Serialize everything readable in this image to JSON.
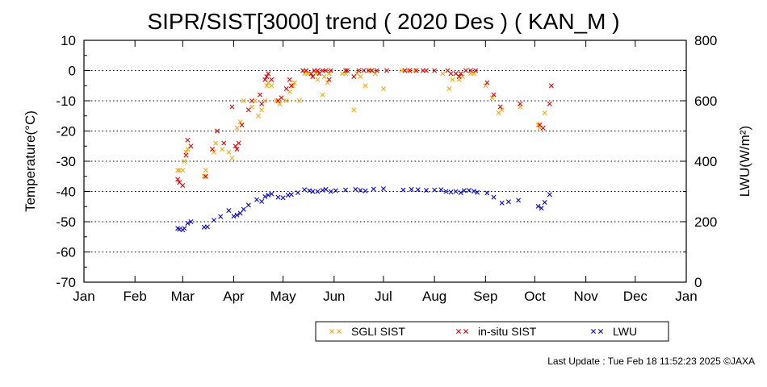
{
  "chart_data": {
    "type": "scatter",
    "title": "SIPR/SIST[3000] trend ( 2020 Des ) ( KAN_M )",
    "xlabel": "",
    "ylabel": "Temperature(°C)",
    "ylabel_right": "LWU(W/m²)",
    "ylim": [
      -70,
      10
    ],
    "ylim_right": [
      0,
      800
    ],
    "grid": "horizontal dotted",
    "legend_position": "bottom-center",
    "x_ticks": [
      "Jan",
      "Feb",
      "Mar",
      "Apr",
      "May",
      "Jun",
      "Jul",
      "Aug",
      "Sep",
      "Oct",
      "Nov",
      "Dec",
      "Jan"
    ],
    "y_ticks": [
      10,
      0,
      -10,
      -20,
      -30,
      -40,
      -50,
      -60,
      -70
    ],
    "y_ticks_right": [
      800,
      600,
      400,
      200,
      0
    ],
    "series": [
      {
        "name": "SGLI SIST",
        "axis": "left",
        "color": "#ffa500",
        "marker": "x",
        "points": [
          [
            "2020-02-27",
            -33
          ],
          [
            "2020-02-28",
            -33
          ],
          [
            "2020-03-01",
            -33
          ],
          [
            "2020-03-02",
            -30
          ],
          [
            "2020-03-03",
            -27
          ],
          [
            "2020-03-04",
            -26
          ],
          [
            "2020-03-14",
            -35
          ],
          [
            "2020-03-15",
            -33
          ],
          [
            "2020-03-20",
            -27
          ],
          [
            "2020-03-21",
            -24
          ],
          [
            "2020-03-25",
            -26
          ],
          [
            "2020-03-29",
            -27
          ],
          [
            "2020-03-31",
            -29
          ],
          [
            "2020-04-03",
            -19
          ],
          [
            "2020-04-05",
            -17
          ],
          [
            "2020-04-07",
            -10
          ],
          [
            "2020-04-12",
            -12
          ],
          [
            "2020-04-14",
            -10
          ],
          [
            "2020-04-16",
            -15
          ],
          [
            "2020-04-18",
            -13
          ],
          [
            "2020-04-20",
            -10
          ],
          [
            "2020-04-21",
            -5
          ],
          [
            "2020-04-22",
            -4
          ],
          [
            "2020-04-24",
            -5
          ],
          [
            "2020-04-27",
            -10
          ],
          [
            "2020-04-29",
            -11
          ],
          [
            "2020-05-03",
            -10
          ],
          [
            "2020-05-05",
            -7
          ],
          [
            "2020-05-07",
            -5
          ],
          [
            "2020-05-08",
            -4
          ],
          [
            "2020-05-11",
            -10
          ],
          [
            "2020-05-14",
            -1
          ],
          [
            "2020-05-16",
            -1
          ],
          [
            "2020-05-19",
            -2
          ],
          [
            "2020-05-21",
            -1
          ],
          [
            "2020-05-22",
            -3
          ],
          [
            "2020-05-25",
            -8
          ],
          [
            "2020-05-26",
            -2
          ],
          [
            "2020-05-28",
            -4
          ],
          [
            "2020-05-29",
            -1
          ],
          [
            "2020-06-06",
            -1
          ],
          [
            "2020-06-08",
            -1
          ],
          [
            "2020-06-13",
            -13
          ],
          [
            "2020-06-15",
            -1
          ],
          [
            "2020-06-17",
            -2
          ],
          [
            "2020-06-20",
            -5
          ],
          [
            "2020-06-23",
            0
          ],
          [
            "2020-06-26",
            -1
          ],
          [
            "2020-07-01",
            -6
          ],
          [
            "2020-07-12",
            0
          ],
          [
            "2020-07-16",
            0
          ],
          [
            "2020-07-20",
            0
          ],
          [
            "2020-08-06",
            -1
          ],
          [
            "2020-08-10",
            -6
          ],
          [
            "2020-08-12",
            -3
          ],
          [
            "2020-08-14",
            -1
          ],
          [
            "2020-08-16",
            -3
          ],
          [
            "2020-08-18",
            -2
          ],
          [
            "2020-08-23",
            -1
          ],
          [
            "2020-08-25",
            -1
          ],
          [
            "2020-09-01",
            -5
          ],
          [
            "2020-09-05",
            -9
          ],
          [
            "2020-09-09",
            -14
          ],
          [
            "2020-09-11",
            -13
          ],
          [
            "2020-09-22",
            -12
          ],
          [
            "2020-10-03",
            -18
          ],
          [
            "2020-10-04",
            -19
          ],
          [
            "2020-10-07",
            -14
          ]
        ]
      },
      {
        "name": "in-situ SIST",
        "axis": "left",
        "color": "#e00000",
        "marker": "x",
        "points": [
          [
            "2020-02-27",
            -36
          ],
          [
            "2020-02-28",
            -37
          ],
          [
            "2020-03-01",
            -38
          ],
          [
            "2020-03-03",
            -28
          ],
          [
            "2020-03-04",
            -23
          ],
          [
            "2020-03-06",
            -25
          ],
          [
            "2020-03-15",
            -35
          ],
          [
            "2020-03-19",
            -26
          ],
          [
            "2020-03-22",
            -20
          ],
          [
            "2020-03-26",
            -24
          ],
          [
            "2020-03-31",
            -12
          ],
          [
            "2020-04-02",
            -25
          ],
          [
            "2020-04-03",
            -26
          ],
          [
            "2020-04-04",
            -24
          ],
          [
            "2020-04-06",
            -18
          ],
          [
            "2020-04-10",
            -13
          ],
          [
            "2020-04-12",
            -10
          ],
          [
            "2020-04-17",
            -8
          ],
          [
            "2020-04-18",
            -11
          ],
          [
            "2020-04-20",
            -3
          ],
          [
            "2020-04-21",
            -2
          ],
          [
            "2020-04-22",
            -1
          ],
          [
            "2020-04-24",
            -3
          ],
          [
            "2020-04-28",
            -10
          ],
          [
            "2020-04-30",
            -9
          ],
          [
            "2020-05-03",
            -6
          ],
          [
            "2020-05-05",
            -3
          ],
          [
            "2020-05-06",
            -5
          ],
          [
            "2020-05-13",
            0
          ],
          [
            "2020-05-15",
            0
          ],
          [
            "2020-05-18",
            -1
          ],
          [
            "2020-05-19",
            -2
          ],
          [
            "2020-05-20",
            0
          ],
          [
            "2020-05-22",
            0
          ],
          [
            "2020-05-23",
            -1
          ],
          [
            "2020-05-25",
            0
          ],
          [
            "2020-05-27",
            0
          ],
          [
            "2020-05-29",
            -3
          ],
          [
            "2020-05-30",
            0
          ],
          [
            "2020-06-08",
            0
          ],
          [
            "2020-06-09",
            0
          ],
          [
            "2020-06-13",
            -2
          ],
          [
            "2020-06-16",
            0
          ],
          [
            "2020-06-19",
            0
          ],
          [
            "2020-06-22",
            0
          ],
          [
            "2020-06-24",
            0
          ],
          [
            "2020-06-27",
            0
          ],
          [
            "2020-07-03",
            0
          ],
          [
            "2020-07-14",
            0
          ],
          [
            "2020-07-17",
            0
          ],
          [
            "2020-07-21",
            0
          ],
          [
            "2020-07-25",
            0
          ],
          [
            "2020-07-27",
            0
          ],
          [
            "2020-08-01",
            0
          ],
          [
            "2020-08-09",
            0
          ],
          [
            "2020-08-11",
            -1
          ],
          [
            "2020-08-14",
            -1
          ],
          [
            "2020-08-16",
            -2
          ],
          [
            "2020-08-17",
            -1
          ],
          [
            "2020-08-20",
            0
          ],
          [
            "2020-08-23",
            0
          ],
          [
            "2020-08-26",
            0
          ],
          [
            "2020-09-02",
            -4
          ],
          [
            "2020-09-06",
            -8
          ],
          [
            "2020-09-10",
            -12
          ],
          [
            "2020-09-22",
            -11
          ],
          [
            "2020-10-04",
            -18
          ],
          [
            "2020-10-06",
            -19
          ],
          [
            "2020-10-10",
            -11
          ],
          [
            "2020-10-11",
            -5
          ]
        ]
      },
      {
        "name": "LWU",
        "axis": "right",
        "color": "#0000e0",
        "marker": "x",
        "points": [
          [
            "2020-02-27",
            178
          ],
          [
            "2020-02-28",
            175
          ],
          [
            "2020-03-01",
            173
          ],
          [
            "2020-03-02",
            178
          ],
          [
            "2020-03-04",
            195
          ],
          [
            "2020-03-06",
            200
          ],
          [
            "2020-03-14",
            182
          ],
          [
            "2020-03-16",
            183
          ],
          [
            "2020-03-20",
            205
          ],
          [
            "2020-03-24",
            217
          ],
          [
            "2020-03-29",
            237
          ],
          [
            "2020-04-01",
            218
          ],
          [
            "2020-04-03",
            222
          ],
          [
            "2020-04-05",
            228
          ],
          [
            "2020-04-07",
            241
          ],
          [
            "2020-04-10",
            255
          ],
          [
            "2020-04-15",
            273
          ],
          [
            "2020-04-18",
            267
          ],
          [
            "2020-04-20",
            283
          ],
          [
            "2020-04-22",
            288
          ],
          [
            "2020-04-24",
            292
          ],
          [
            "2020-04-28",
            281
          ],
          [
            "2020-05-01",
            279
          ],
          [
            "2020-05-04",
            288
          ],
          [
            "2020-05-06",
            290
          ],
          [
            "2020-05-10",
            296
          ],
          [
            "2020-05-14",
            306
          ],
          [
            "2020-05-17",
            303
          ],
          [
            "2020-05-19",
            300
          ],
          [
            "2020-05-22",
            300
          ],
          [
            "2020-05-25",
            304
          ],
          [
            "2020-05-27",
            307
          ],
          [
            "2020-05-30",
            300
          ],
          [
            "2020-06-02",
            303
          ],
          [
            "2020-06-08",
            305
          ],
          [
            "2020-06-14",
            307
          ],
          [
            "2020-06-17",
            304
          ],
          [
            "2020-06-20",
            302
          ],
          [
            "2020-06-25",
            308
          ],
          [
            "2020-07-01",
            309
          ],
          [
            "2020-07-13",
            305
          ],
          [
            "2020-07-18",
            307
          ],
          [
            "2020-07-22",
            306
          ],
          [
            "2020-07-27",
            304
          ],
          [
            "2020-08-01",
            305
          ],
          [
            "2020-08-05",
            306
          ],
          [
            "2020-08-08",
            300
          ],
          [
            "2020-08-11",
            298
          ],
          [
            "2020-08-14",
            300
          ],
          [
            "2020-08-17",
            296
          ],
          [
            "2020-08-19",
            303
          ],
          [
            "2020-08-22",
            304
          ],
          [
            "2020-08-25",
            301
          ],
          [
            "2020-08-27",
            297
          ],
          [
            "2020-09-02",
            295
          ],
          [
            "2020-09-06",
            281
          ],
          [
            "2020-09-11",
            262
          ],
          [
            "2020-09-15",
            266
          ],
          [
            "2020-09-21",
            271
          ],
          [
            "2020-10-03",
            251
          ],
          [
            "2020-10-05",
            245
          ],
          [
            "2020-10-07",
            264
          ],
          [
            "2020-10-10",
            290
          ]
        ]
      }
    ]
  },
  "footer": {
    "last_update": "Last Update : Tue Feb 18 11:52:23 2025  ©JAXA"
  }
}
